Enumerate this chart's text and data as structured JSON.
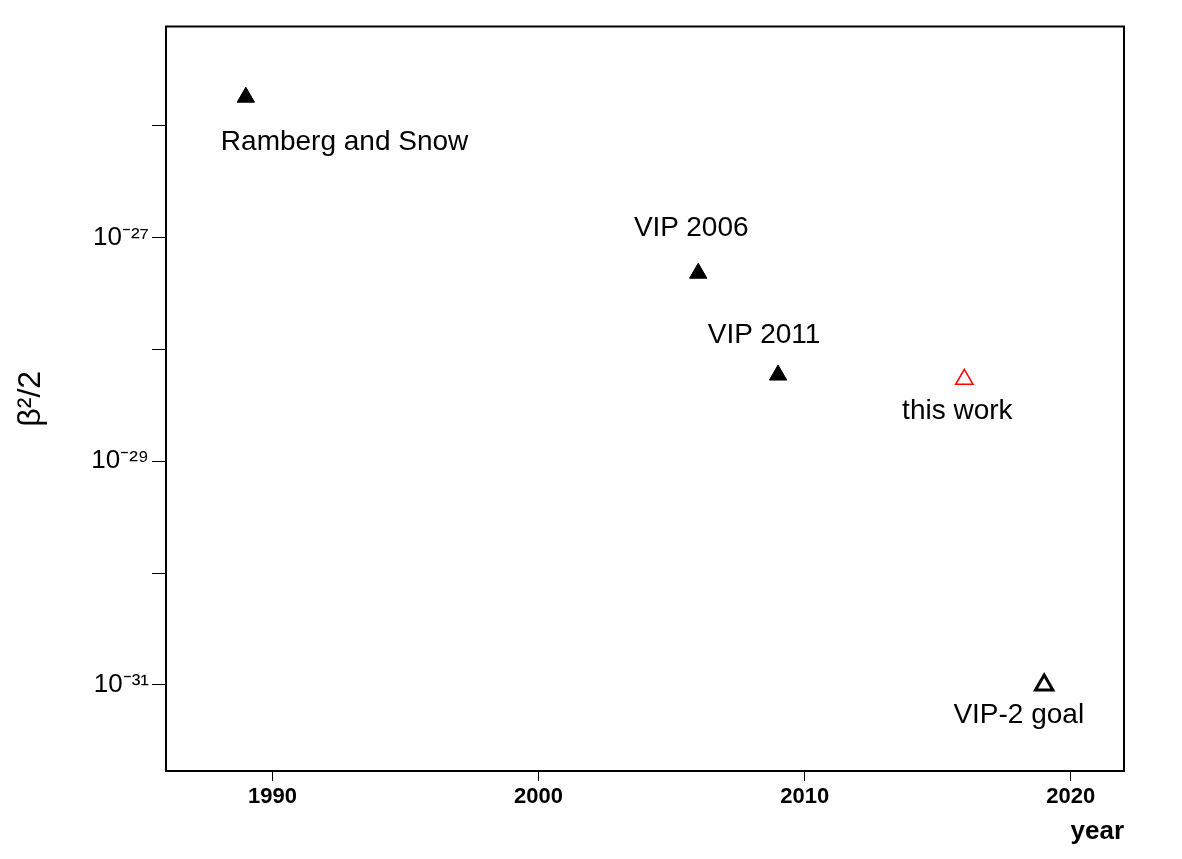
{
  "chart_data": {
    "type": "scatter",
    "xlabel": "year",
    "ylabel": "β²/2",
    "log": "y",
    "marker": "triangle",
    "grid": false,
    "xlim": [
      1986,
      2022
    ],
    "xticks": [
      1990,
      2000,
      2010,
      2020
    ],
    "ylim": [
      1.7e-32,
      7.7e-26
    ],
    "yticks": [
      {
        "value": 1e-26,
        "label": null
      },
      {
        "value": 1e-27,
        "label": "10⁻²⁷"
      },
      {
        "value": 1e-28,
        "label": null
      },
      {
        "value": 1e-29,
        "label": "10⁻²⁹"
      },
      {
        "value": 1e-30,
        "label": null
      },
      {
        "value": 1e-31,
        "label": "10⁻³¹"
      }
    ],
    "series": [
      {
        "color": "#000000",
        "x": [
          1989,
          2006,
          2009
        ],
        "values": [
          1.8e-26,
          4.8e-28,
          5.9e-29
        ]
      },
      {
        "color": "#ff0000",
        "x": [
          2016
        ],
        "values": [
          5.4e-29
        ]
      },
      {
        "color": "#000000",
        "x": [
          2019
        ],
        "values": [
          1e-31
        ]
      }
    ],
    "annotations": [
      {
        "text": "Ramberg and Snow",
        "x": 1989,
        "y": 1.8e-26
      },
      {
        "text": "VIP 2006",
        "x": 2006,
        "y": 4.8e-28
      },
      {
        "text": "VIP 2011",
        "x": 2009,
        "y": 5.9e-29
      },
      {
        "text": "this work",
        "x": 2016,
        "y": 5.4e-29
      },
      {
        "text": "VIP-2 goal",
        "x": 2019,
        "y": 1e-31
      }
    ]
  }
}
